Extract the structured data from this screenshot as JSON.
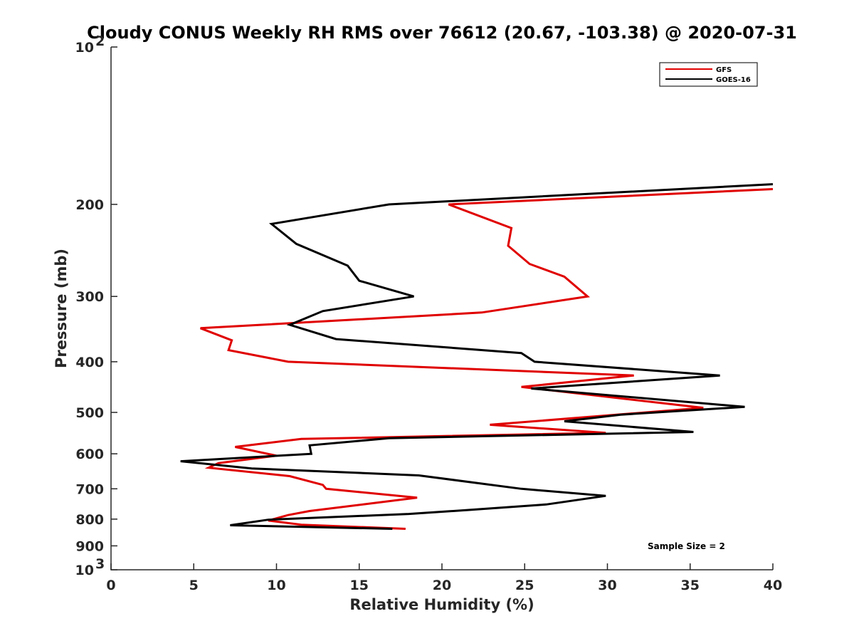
{
  "chart_data": {
    "type": "line",
    "title": "Cloudy CONUS Weekly RH RMS over 76612 (20.67, -103.38) @ 2020-07-31",
    "xlabel": "Relative Humidity (%)",
    "ylabel": "Pressure (mb)",
    "xlim": [
      0,
      40
    ],
    "ylim": [
      100,
      1000
    ],
    "yscale": "log",
    "yreversed": true,
    "x_ticks": [
      {
        "value": 0,
        "label": "0"
      },
      {
        "value": 5,
        "label": "5"
      },
      {
        "value": 10,
        "label": "10"
      },
      {
        "value": 15,
        "label": "15"
      },
      {
        "value": 20,
        "label": "20"
      },
      {
        "value": 25,
        "label": "25"
      },
      {
        "value": 30,
        "label": "30"
      },
      {
        "value": 35,
        "label": "35"
      },
      {
        "value": 40,
        "label": "40"
      }
    ],
    "y_ticks": [
      {
        "value": 100,
        "base": "10",
        "exp": "2"
      },
      {
        "value": 200,
        "label": "200"
      },
      {
        "value": 300,
        "label": "300"
      },
      {
        "value": 400,
        "label": "400"
      },
      {
        "value": 500,
        "label": "500"
      },
      {
        "value": 600,
        "label": "600"
      },
      {
        "value": 700,
        "label": "700"
      },
      {
        "value": 800,
        "label": "800"
      },
      {
        "value": 900,
        "label": "900"
      },
      {
        "value": 1000,
        "base": "10",
        "exp": "3"
      }
    ],
    "grid": false,
    "legend_position": "top-right",
    "annotation": "Sample Size = 2",
    "series": [
      {
        "name": "GFS",
        "color": "#e00000",
        "points": [
          [
            40.0,
            187
          ],
          [
            20.4,
            200
          ],
          [
            24.2,
            222
          ],
          [
            24.0,
            240
          ],
          [
            25.3,
            260
          ],
          [
            27.4,
            275
          ],
          [
            28.8,
            300
          ],
          [
            22.4,
            322
          ],
          [
            5.4,
            345
          ],
          [
            7.3,
            364
          ],
          [
            7.1,
            380
          ],
          [
            10.7,
            400
          ],
          [
            31.6,
            425
          ],
          [
            24.8,
            447
          ],
          [
            35.8,
            490
          ],
          [
            22.9,
            528
          ],
          [
            29.9,
            547
          ],
          [
            11.5,
            562
          ],
          [
            7.5,
            582
          ],
          [
            10.0,
            605
          ],
          [
            6.5,
            625
          ],
          [
            5.9,
            638
          ],
          [
            10.8,
            662
          ],
          [
            12.8,
            688
          ],
          [
            13.0,
            700
          ],
          [
            18.5,
            728
          ],
          [
            12.0,
            772
          ],
          [
            10.7,
            786
          ],
          [
            9.5,
            805
          ],
          [
            11.5,
            820
          ],
          [
            17.8,
            835
          ]
        ]
      },
      {
        "name": "GOES-16",
        "color": "#000000",
        "points": [
          [
            40.0,
            183
          ],
          [
            16.8,
            200
          ],
          [
            9.7,
            218
          ],
          [
            11.2,
            238
          ],
          [
            14.3,
            262
          ],
          [
            15.0,
            280
          ],
          [
            18.3,
            300
          ],
          [
            12.8,
            320
          ],
          [
            10.8,
            340
          ],
          [
            13.6,
            362
          ],
          [
            24.8,
            385
          ],
          [
            25.6,
            400
          ],
          [
            36.8,
            425
          ],
          [
            25.4,
            450
          ],
          [
            38.3,
            488
          ],
          [
            30.8,
            505
          ],
          [
            27.4,
            520
          ],
          [
            35.2,
            545
          ],
          [
            16.8,
            560
          ],
          [
            12.0,
            578
          ],
          [
            12.1,
            600
          ],
          [
            4.2,
            620
          ],
          [
            8.5,
            640
          ],
          [
            18.6,
            660
          ],
          [
            24.8,
            700
          ],
          [
            29.9,
            722
          ],
          [
            26.3,
            750
          ],
          [
            21.7,
            768
          ],
          [
            18.0,
            782
          ],
          [
            9.5,
            802
          ],
          [
            7.2,
            822
          ],
          [
            17.0,
            835
          ]
        ]
      }
    ]
  }
}
